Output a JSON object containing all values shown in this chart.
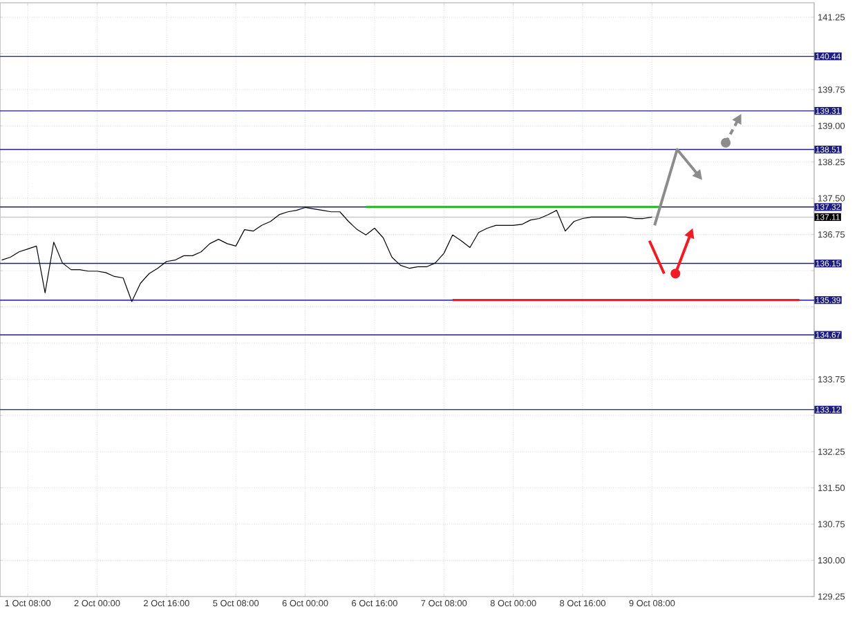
{
  "chart_data": {
    "type": "line",
    "categories": [
      null,
      null,
      null,
      "1 Oct 08:00",
      null,
      null,
      null,
      null,
      null,
      null,
      null,
      "2 Oct 00:00",
      null,
      null,
      null,
      null,
      null,
      null,
      null,
      "2 Oct 16:00",
      null,
      null,
      null,
      null,
      null,
      null,
      null,
      "5 Oct 08:00",
      null,
      null,
      null,
      null,
      null,
      null,
      null,
      "6 Oct 00:00",
      null,
      null,
      null,
      null,
      null,
      null,
      null,
      "6 Oct 16:00",
      null,
      null,
      null,
      null,
      null,
      null,
      null,
      "7 Oct 08:00",
      null,
      null,
      null,
      null,
      null,
      null,
      null,
      "8 Oct 00:00",
      null,
      null,
      null,
      null,
      null,
      null,
      null,
      "8 Oct 16:00",
      null,
      null,
      null,
      null,
      null,
      null,
      null,
      "9 Oct 08:00",
      null,
      null,
      null,
      null,
      null,
      null,
      null,
      null,
      null,
      null,
      null,
      null,
      null,
      null,
      null,
      null,
      null
    ],
    "series": [
      {
        "color": "#000000",
        "values": [
          136.22,
          136.28,
          136.39,
          136.45,
          136.51,
          135.54,
          136.59,
          136.16,
          136.02,
          136.02,
          135.99,
          135.99,
          135.96,
          135.88,
          135.85,
          135.36,
          135.74,
          135.94,
          136.05,
          136.19,
          136.22,
          136.31,
          136.31,
          136.39,
          136.56,
          136.65,
          136.56,
          136.51,
          136.85,
          136.82,
          136.94,
          137.02,
          137.16,
          137.22,
          137.25,
          137.31,
          137.28,
          137.25,
          137.22,
          137.22,
          137.02,
          136.85,
          136.74,
          136.88,
          136.68,
          136.28,
          136.11,
          136.05,
          136.08,
          136.08,
          136.16,
          136.36,
          136.74,
          136.62,
          136.48,
          136.79,
          136.88,
          136.94,
          136.94,
          136.94,
          136.96,
          137.05,
          137.08,
          137.16,
          137.25,
          136.82,
          137.02,
          137.08,
          137.11,
          137.11,
          137.11,
          137.11,
          137.11,
          137.08,
          137.08,
          137.11,
          null,
          null,
          null,
          null,
          null,
          null,
          null,
          null,
          null,
          null,
          null,
          null,
          null,
          null,
          null,
          null,
          null
        ]
      },
      {
        "color": "#22b422",
        "values": [
          null,
          null,
          null,
          null,
          null,
          null,
          null,
          null,
          null,
          null,
          null,
          null,
          null,
          null,
          null,
          null,
          null,
          null,
          null,
          null,
          null,
          null,
          null,
          null,
          null,
          null,
          null,
          null,
          null,
          null,
          null,
          null,
          null,
          null,
          null,
          null,
          null,
          null,
          null,
          null,
          null,
          null,
          137.32,
          137.32,
          137.32,
          137.32,
          137.32,
          137.32,
          137.32,
          137.32,
          137.32,
          137.32,
          137.32,
          137.32,
          137.32,
          137.32,
          137.32,
          137.32,
          137.32,
          137.32,
          137.32,
          137.32,
          137.32,
          137.32,
          137.32,
          137.32,
          137.32,
          137.32,
          137.32,
          137.32,
          137.32,
          137.32,
          137.32,
          137.32,
          137.32,
          137.32,
          137.32,
          null,
          null,
          null,
          null,
          null,
          null,
          null,
          null,
          null,
          null,
          null,
          null,
          null,
          null,
          null,
          null
        ]
      },
      {
        "color": "#ee1c24",
        "values": [
          null,
          null,
          null,
          null,
          null,
          null,
          null,
          null,
          null,
          null,
          null,
          null,
          null,
          null,
          null,
          null,
          null,
          null,
          null,
          null,
          null,
          null,
          null,
          null,
          null,
          null,
          null,
          null,
          null,
          null,
          null,
          null,
          null,
          null,
          null,
          null,
          null,
          null,
          null,
          null,
          null,
          null,
          null,
          null,
          null,
          null,
          null,
          null,
          null,
          null,
          null,
          null,
          135.39,
          135.39,
          135.39,
          135.39,
          135.39,
          135.39,
          135.39,
          135.39,
          135.39,
          135.39,
          135.39,
          135.39,
          135.39,
          135.39,
          135.39,
          135.39,
          135.39,
          135.39,
          135.39,
          135.39,
          135.39,
          135.39,
          135.39,
          135.39,
          135.39,
          135.39,
          135.39,
          135.39,
          135.39,
          135.39,
          135.39,
          135.39,
          135.39,
          135.39,
          135.39,
          135.39,
          135.39,
          135.39,
          135.39,
          135.39,
          135.39
        ]
      }
    ],
    "ylim": [
      129.25,
      141.55
    ],
    "yticks": [
      141.25,
      {
        "value": 140.5,
        "label": null
      },
      139.75,
      {
        "value": 139,
        "label": "139.00"
      },
      138.25,
      {
        "value": 137.5,
        "label": "137.50"
      },
      136.75,
      {
        "value": 136,
        "label": null
      },
      {
        "value": 135.25,
        "label": null
      },
      {
        "value": 134.5,
        "label": null
      },
      133.75,
      {
        "value": 133,
        "label": null
      },
      132.25,
      {
        "value": 131.5,
        "label": "131.50"
      },
      130.75,
      {
        "value": 130,
        "label": "130.00"
      },
      129.25
    ],
    "grid": true,
    "ref_lines": [
      {
        "axis": "y",
        "value": 140.44,
        "label": "140.44",
        "color": "#1e1e82"
      },
      {
        "axis": "y",
        "value": 139.31,
        "label": "139.31",
        "color": "#1e1e82"
      },
      {
        "axis": "y",
        "value": 138.51,
        "label": "138.51",
        "color": "#1e1e82"
      },
      {
        "axis": "y",
        "value": 137.32,
        "label": "137.32",
        "color": "#1e1e82"
      },
      {
        "axis": "y",
        "value": 137.11,
        "label": "137.11",
        "color": "#c8c8c8"
      },
      {
        "axis": "y",
        "value": 136.15,
        "label": "136.15",
        "color": "#1e1e82"
      },
      {
        "axis": "y",
        "value": 135.39,
        "label": "135.39",
        "color": "#1e1e82"
      },
      {
        "axis": "y",
        "value": 134.67,
        "label": "134.67",
        "color": "#1e1e82"
      },
      {
        "axis": "y",
        "value": 133.12,
        "label": "133.12",
        "color": "#1e1e82"
      }
    ]
  }
}
